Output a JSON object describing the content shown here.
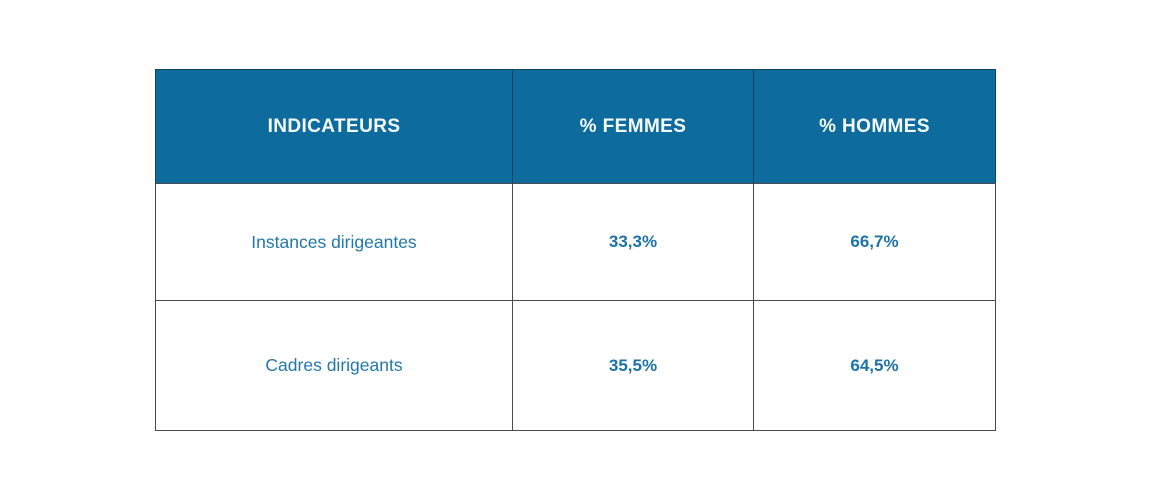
{
  "table": {
    "columns": [
      {
        "label": "INDICATEURS"
      },
      {
        "label": "% FEMMES"
      },
      {
        "label": "% HOMMES"
      }
    ],
    "rows": [
      {
        "indicator": "Instances dirigeantes",
        "femmes": "33,3%",
        "hommes": "66,7%"
      },
      {
        "indicator": "Cadres dirigeants",
        "femmes": "35,5%",
        "hommes": "64,5%"
      }
    ],
    "colors": {
      "header_bg": "#0e6b9e",
      "header_text": "#f4fafd",
      "body_text": "#2278aa",
      "value_text": "#1d72a6",
      "border": "#4a4a4a"
    }
  },
  "chart_data": {
    "type": "table",
    "title": "",
    "columns": [
      "INDICATEURS",
      "% FEMMES",
      "% HOMMES"
    ],
    "rows": [
      [
        "Instances dirigeantes",
        "33,3%",
        "66,7%"
      ],
      [
        "Cadres dirigeants",
        "35,5%",
        "64,5%"
      ]
    ],
    "series": [
      {
        "name": "% FEMMES",
        "values": [
          33.3,
          35.5
        ]
      },
      {
        "name": "% HOMMES",
        "values": [
          66.7,
          64.5
        ]
      }
    ],
    "categories": [
      "Instances dirigeantes",
      "Cadres dirigeants"
    ]
  }
}
